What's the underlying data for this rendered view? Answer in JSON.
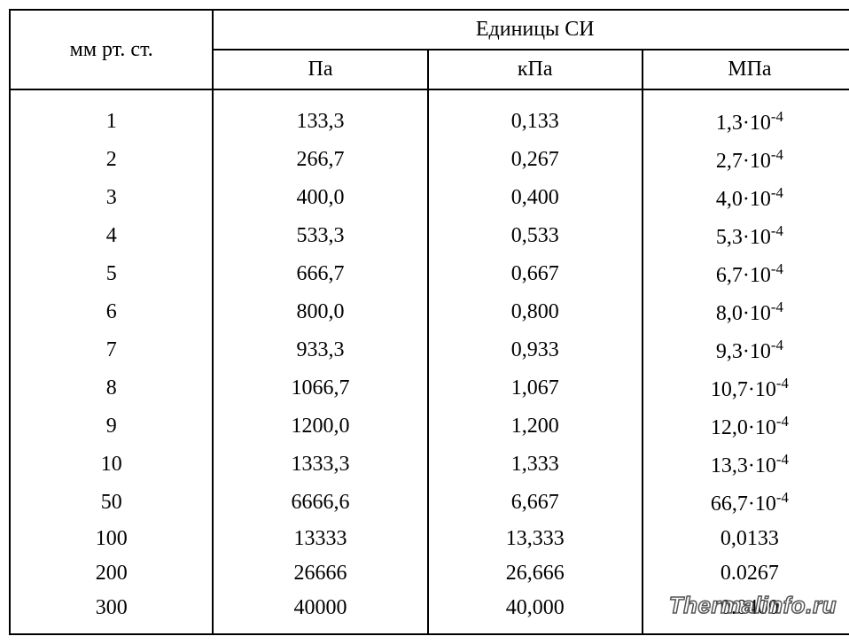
{
  "table": {
    "type": "table",
    "background_color": "#ffffff",
    "border_color": "#000000",
    "border_width": 2,
    "font_family": "Times New Roman",
    "font_size": 24,
    "columns": {
      "mm_header": "мм рт. ст.",
      "si_header": "Единицы СИ",
      "pa_header": "Па",
      "kpa_header": "кПа",
      "mpa_header": "МПа",
      "widths_percent": [
        24,
        25.3,
        25.3,
        25.3
      ],
      "alignment": [
        "center",
        "center",
        "center",
        "center"
      ]
    },
    "rows": [
      {
        "mm": "1",
        "pa": "133,3",
        "kpa": "0,133",
        "mpa_base": "1,3·10",
        "mpa_exp": "-4",
        "mpa_plain": ""
      },
      {
        "mm": "2",
        "pa": "266,7",
        "kpa": "0,267",
        "mpa_base": "2,7·10",
        "mpa_exp": "-4",
        "mpa_plain": ""
      },
      {
        "mm": "3",
        "pa": "400,0",
        "kpa": "0,400",
        "mpa_base": "4,0·10",
        "mpa_exp": "-4",
        "mpa_plain": ""
      },
      {
        "mm": "4",
        "pa": "533,3",
        "kpa": "0,533",
        "mpa_base": "5,3·10",
        "mpa_exp": "-4",
        "mpa_plain": ""
      },
      {
        "mm": "5",
        "pa": "666,7",
        "kpa": "0,667",
        "mpa_base": "6,7·10",
        "mpa_exp": "-4",
        "mpa_plain": ""
      },
      {
        "mm": "6",
        "pa": "800,0",
        "kpa": "0,800",
        "mpa_base": "8,0·10",
        "mpa_exp": "-4",
        "mpa_plain": ""
      },
      {
        "mm": "7",
        "pa": "933,3",
        "kpa": "0,933",
        "mpa_base": "9,3·10",
        "mpa_exp": "-4",
        "mpa_plain": ""
      },
      {
        "mm": "8",
        "pa": "1066,7",
        "kpa": "1,067",
        "mpa_base": "10,7·10",
        "mpa_exp": "-4",
        "mpa_plain": ""
      },
      {
        "mm": "9",
        "pa": "1200,0",
        "kpa": "1,200",
        "mpa_base": "12,0·10",
        "mpa_exp": "-4",
        "mpa_plain": ""
      },
      {
        "mm": "10",
        "pa": "1333,3",
        "kpa": "1,333",
        "mpa_base": "13,3·10",
        "mpa_exp": "-4",
        "mpa_plain": ""
      },
      {
        "mm": "50",
        "pa": "6666,6",
        "kpa": "6,667",
        "mpa_base": "66,7·10",
        "mpa_exp": "-4",
        "mpa_plain": ""
      },
      {
        "mm": "100",
        "pa": "13333",
        "kpa": "13,333",
        "mpa_base": "",
        "mpa_exp": "",
        "mpa_plain": "0,0133"
      },
      {
        "mm": "200",
        "pa": "26666",
        "kpa": "26,666",
        "mpa_base": "",
        "mpa_exp": "",
        "mpa_plain": "0.0267"
      },
      {
        "mm": "300",
        "pa": "40000",
        "kpa": "40,000",
        "mpa_base": "",
        "mpa_exp": "",
        "mpa_plain": "0.0400"
      }
    ]
  },
  "watermark": "Thermalinfo.ru"
}
